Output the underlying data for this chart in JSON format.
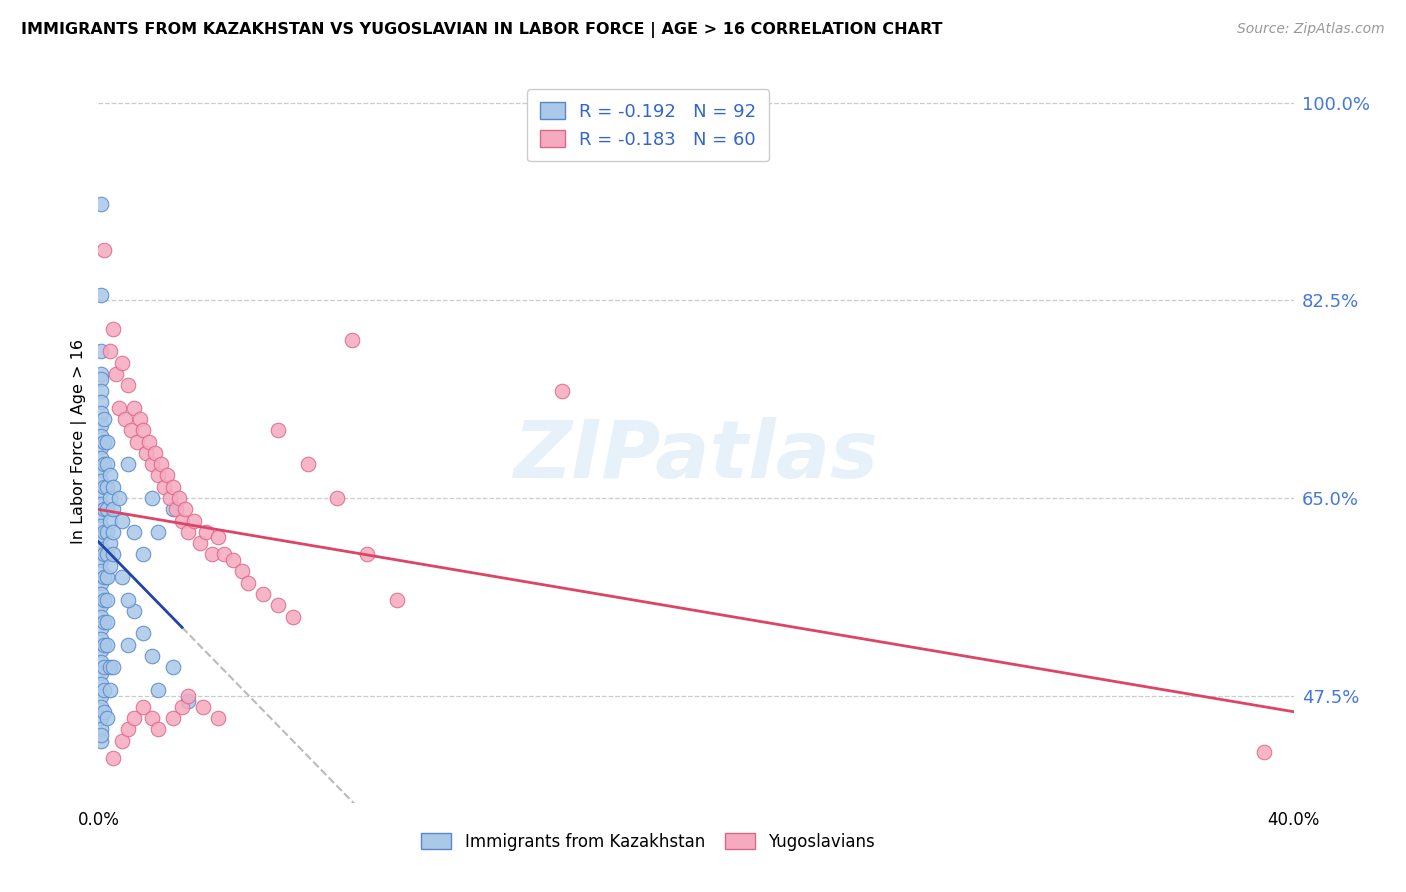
{
  "title": "IMMIGRANTS FROM KAZAKHSTAN VS YUGOSLAVIAN IN LABOR FORCE | AGE > 16 CORRELATION CHART",
  "source": "Source: ZipAtlas.com",
  "ylabel": "In Labor Force | Age > 16",
  "xmin": 0.0,
  "xmax": 0.4,
  "ymin": 0.38,
  "ymax": 1.02,
  "right_ytick_values": [
    1.0,
    0.825,
    0.65,
    0.475
  ],
  "right_ytick_labels": [
    "100.0%",
    "82.5%",
    "65.0%",
    "47.5%"
  ],
  "grid_color": "#cccccc",
  "background_color": "#ffffff",
  "kazakhstan_color": "#aac8e8",
  "yugoslavian_color": "#f5aabf",
  "kazakhstan_edge_color": "#5588cc",
  "yugoslavian_edge_color": "#dd6688",
  "regression_kazakhstan_color": "#2244aa",
  "regression_yugoslavian_color": "#dd4466",
  "regression_dashed_color": "#bbbbbb",
  "legend_kazakhstan_label": "Immigrants from Kazakhstan",
  "legend_yugoslavian_label": "Yugoslavians",
  "kazakhstan_R": -0.192,
  "kazakhstan_N": 92,
  "yugoslavian_R": -0.183,
  "yugoslavian_N": 60,
  "watermark": "ZIPatlas",
  "kazakhstan_points": [
    [
      0.001,
      0.91
    ],
    [
      0.001,
      0.83
    ],
    [
      0.001,
      0.78
    ],
    [
      0.001,
      0.76
    ],
    [
      0.001,
      0.755
    ],
    [
      0.001,
      0.745
    ],
    [
      0.001,
      0.735
    ],
    [
      0.001,
      0.725
    ],
    [
      0.001,
      0.715
    ],
    [
      0.001,
      0.705
    ],
    [
      0.001,
      0.695
    ],
    [
      0.001,
      0.685
    ],
    [
      0.001,
      0.675
    ],
    [
      0.001,
      0.665
    ],
    [
      0.001,
      0.655
    ],
    [
      0.001,
      0.645
    ],
    [
      0.001,
      0.635
    ],
    [
      0.001,
      0.625
    ],
    [
      0.001,
      0.615
    ],
    [
      0.001,
      0.605
    ],
    [
      0.001,
      0.595
    ],
    [
      0.001,
      0.585
    ],
    [
      0.001,
      0.575
    ],
    [
      0.001,
      0.565
    ],
    [
      0.001,
      0.555
    ],
    [
      0.001,
      0.545
    ],
    [
      0.001,
      0.535
    ],
    [
      0.001,
      0.525
    ],
    [
      0.001,
      0.515
    ],
    [
      0.001,
      0.505
    ],
    [
      0.001,
      0.495
    ],
    [
      0.001,
      0.485
    ],
    [
      0.001,
      0.475
    ],
    [
      0.001,
      0.465
    ],
    [
      0.001,
      0.455
    ],
    [
      0.001,
      0.445
    ],
    [
      0.001,
      0.435
    ],
    [
      0.001,
      0.44
    ],
    [
      0.002,
      0.72
    ],
    [
      0.002,
      0.7
    ],
    [
      0.002,
      0.68
    ],
    [
      0.002,
      0.66
    ],
    [
      0.002,
      0.64
    ],
    [
      0.002,
      0.62
    ],
    [
      0.002,
      0.6
    ],
    [
      0.002,
      0.58
    ],
    [
      0.002,
      0.56
    ],
    [
      0.002,
      0.54
    ],
    [
      0.002,
      0.52
    ],
    [
      0.002,
      0.5
    ],
    [
      0.002,
      0.48
    ],
    [
      0.002,
      0.46
    ],
    [
      0.003,
      0.7
    ],
    [
      0.003,
      0.68
    ],
    [
      0.003,
      0.66
    ],
    [
      0.003,
      0.64
    ],
    [
      0.003,
      0.62
    ],
    [
      0.003,
      0.6
    ],
    [
      0.003,
      0.58
    ],
    [
      0.003,
      0.56
    ],
    [
      0.003,
      0.54
    ],
    [
      0.003,
      0.52
    ],
    [
      0.004,
      0.67
    ],
    [
      0.004,
      0.65
    ],
    [
      0.004,
      0.63
    ],
    [
      0.004,
      0.61
    ],
    [
      0.004,
      0.59
    ],
    [
      0.004,
      0.5
    ],
    [
      0.005,
      0.66
    ],
    [
      0.005,
      0.64
    ],
    [
      0.005,
      0.62
    ],
    [
      0.005,
      0.6
    ],
    [
      0.007,
      0.65
    ],
    [
      0.008,
      0.63
    ],
    [
      0.01,
      0.68
    ],
    [
      0.012,
      0.62
    ],
    [
      0.015,
      0.6
    ],
    [
      0.018,
      0.65
    ],
    [
      0.02,
      0.62
    ],
    [
      0.025,
      0.64
    ],
    [
      0.003,
      0.455
    ],
    [
      0.004,
      0.48
    ],
    [
      0.005,
      0.5
    ],
    [
      0.01,
      0.52
    ],
    [
      0.012,
      0.55
    ],
    [
      0.015,
      0.53
    ],
    [
      0.018,
      0.51
    ],
    [
      0.02,
      0.48
    ],
    [
      0.025,
      0.5
    ],
    [
      0.008,
      0.58
    ],
    [
      0.01,
      0.56
    ],
    [
      0.03,
      0.47
    ]
  ],
  "yugoslavian_points": [
    [
      0.002,
      0.87
    ],
    [
      0.004,
      0.78
    ],
    [
      0.005,
      0.8
    ],
    [
      0.006,
      0.76
    ],
    [
      0.007,
      0.73
    ],
    [
      0.008,
      0.77
    ],
    [
      0.009,
      0.72
    ],
    [
      0.01,
      0.75
    ],
    [
      0.011,
      0.71
    ],
    [
      0.012,
      0.73
    ],
    [
      0.013,
      0.7
    ],
    [
      0.014,
      0.72
    ],
    [
      0.015,
      0.71
    ],
    [
      0.016,
      0.69
    ],
    [
      0.017,
      0.7
    ],
    [
      0.018,
      0.68
    ],
    [
      0.019,
      0.69
    ],
    [
      0.02,
      0.67
    ],
    [
      0.021,
      0.68
    ],
    [
      0.022,
      0.66
    ],
    [
      0.023,
      0.67
    ],
    [
      0.024,
      0.65
    ],
    [
      0.025,
      0.66
    ],
    [
      0.026,
      0.64
    ],
    [
      0.027,
      0.65
    ],
    [
      0.028,
      0.63
    ],
    [
      0.029,
      0.64
    ],
    [
      0.03,
      0.62
    ],
    [
      0.032,
      0.63
    ],
    [
      0.034,
      0.61
    ],
    [
      0.036,
      0.62
    ],
    [
      0.038,
      0.6
    ],
    [
      0.04,
      0.615
    ],
    [
      0.042,
      0.6
    ],
    [
      0.045,
      0.595
    ],
    [
      0.048,
      0.585
    ],
    [
      0.05,
      0.575
    ],
    [
      0.055,
      0.565
    ],
    [
      0.06,
      0.555
    ],
    [
      0.065,
      0.545
    ],
    [
      0.005,
      0.42
    ],
    [
      0.008,
      0.435
    ],
    [
      0.01,
      0.445
    ],
    [
      0.012,
      0.455
    ],
    [
      0.015,
      0.465
    ],
    [
      0.018,
      0.455
    ],
    [
      0.02,
      0.445
    ],
    [
      0.025,
      0.455
    ],
    [
      0.028,
      0.465
    ],
    [
      0.03,
      0.475
    ],
    [
      0.035,
      0.465
    ],
    [
      0.04,
      0.455
    ],
    [
      0.085,
      0.79
    ],
    [
      0.06,
      0.71
    ],
    [
      0.07,
      0.68
    ],
    [
      0.08,
      0.65
    ],
    [
      0.09,
      0.6
    ],
    [
      0.1,
      0.56
    ],
    [
      0.155,
      0.745
    ],
    [
      0.39,
      0.425
    ]
  ]
}
